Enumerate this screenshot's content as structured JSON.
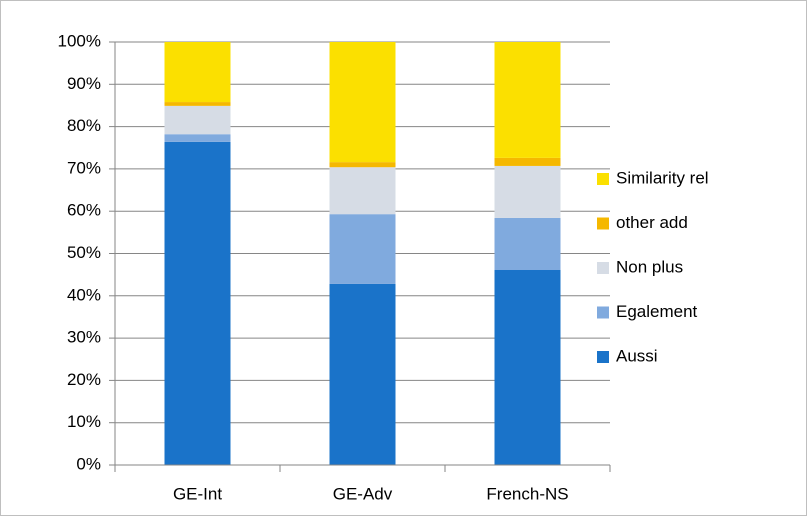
{
  "chart_data": {
    "type": "stacked_bar",
    "categories": [
      "GE-Int",
      "GE-Adv",
      "French-NS"
    ],
    "series": [
      {
        "name": "Aussi",
        "color": "#1a73c9",
        "values": [
          76.4,
          42.8,
          46.1
        ]
      },
      {
        "name": "Egalement",
        "color": "#80aade",
        "values": [
          1.8,
          16.5,
          12.3
        ]
      },
      {
        "name": "Non plus",
        "color": "#d6dce5",
        "values": [
          6.7,
          11.1,
          12.3
        ]
      },
      {
        "name": "other add",
        "color": "#f5b800",
        "values": [
          0.9,
          1.2,
          1.9
        ]
      },
      {
        "name": "Similarity rel",
        "color": "#fbe000",
        "values": [
          14.2,
          28.4,
          27.4
        ]
      }
    ],
    "ylim": [
      0,
      100
    ],
    "yticks": [
      {
        "value": 0,
        "label": "0%"
      },
      {
        "value": 10,
        "label": "10%"
      },
      {
        "value": 20,
        "label": "20%"
      },
      {
        "value": 30,
        "label": "30%"
      },
      {
        "value": 40,
        "label": "40%"
      },
      {
        "value": 50,
        "label": "50%"
      },
      {
        "value": 60,
        "label": "60%"
      },
      {
        "value": 70,
        "label": "70%"
      },
      {
        "value": 80,
        "label": "80%"
      },
      {
        "value": 90,
        "label": "90%"
      },
      {
        "value": 100,
        "label": "100%"
      }
    ],
    "grid": true,
    "legend": "right"
  }
}
